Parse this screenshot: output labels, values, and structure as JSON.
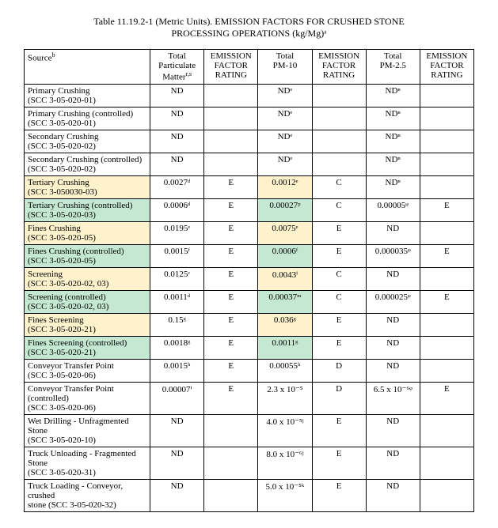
{
  "title": "Table 11.19.2-1 (Metric Units). EMISSION FACTORS FOR CRUSHED STONE\nPROCESSING OPERATIONS (kg/Mg)ᵃ",
  "columns": [
    {
      "label": "Source",
      "sup": "b"
    },
    {
      "label": "Total\nParticulate\nMatter",
      "sup": "r,s"
    },
    {
      "label": "EMISSION\nFACTOR\nRATING",
      "sup": ""
    },
    {
      "label": "Total\nPM-10",
      "sup": ""
    },
    {
      "label": "EMISSION\nFACTOR\nRATING",
      "sup": ""
    },
    {
      "label": "Total\nPM-2.5",
      "sup": ""
    },
    {
      "label": "EMISSION\nFACTOR\nRATING",
      "sup": ""
    }
  ],
  "rows": [
    {
      "src": "Primary Crushing\n(SCC 3-05-020-01)",
      "v": [
        "ND",
        "",
        "NDᵉ",
        "",
        "NDⁿ",
        ""
      ],
      "hl": [
        "",
        "",
        "",
        "",
        "",
        ""
      ]
    },
    {
      "src": "Primary Crushing (controlled)\n(SCC 3-05-020-01)",
      "v": [
        "ND",
        "",
        "NDᵉ",
        "",
        "NDⁿ",
        ""
      ],
      "hl": [
        "",
        "",
        "",
        "",
        "",
        ""
      ]
    },
    {
      "src": "Secondary Crushing\n(SCC 3-05-020-02)",
      "v": [
        "ND",
        "",
        "NDᵉ",
        "",
        "NDⁿ",
        ""
      ],
      "hl": [
        "",
        "",
        "",
        "",
        "",
        ""
      ]
    },
    {
      "src": "Secondary Crushing (controlled)\n(SCC 3-05-020-02)",
      "v": [
        "ND",
        "",
        "NDᵉ",
        "",
        "NDⁿ",
        ""
      ],
      "hl": [
        "",
        "",
        "",
        "",
        "",
        ""
      ]
    },
    {
      "src": "Tertiary Crushing\n(SCC 3-050030-03)",
      "v": [
        "0.0027ᵈ",
        "E",
        "0.0012ᵉ",
        "C",
        "NDⁿ",
        ""
      ],
      "hl": [
        "y",
        "",
        "",
        "y",
        "",
        "",
        ""
      ]
    },
    {
      "src": "Tertiary Crushing (controlled)\n(SCC 3-05-020-03)",
      "v": [
        "0.0006ᵈ",
        "E",
        "0.00027ᵖ",
        "C",
        "0.00005ᵠ",
        "E"
      ],
      "hl": [
        "g",
        "",
        "",
        "g",
        "",
        "",
        ""
      ]
    },
    {
      "src": "Fines Crushing\n(SCC 3-05-020-05)",
      "v": [
        "0.0195ᵉ",
        "E",
        "0.0075ᵉ",
        "E",
        "ND",
        ""
      ],
      "hl": [
        "y",
        "",
        "",
        "y",
        "",
        "",
        ""
      ]
    },
    {
      "src": "Fines Crushing (controlled)\n(SCC 3-05-020-05)",
      "v": [
        "0.0015ᶠ",
        "E",
        "0.0006ᶠ",
        "E",
        "0.000035ᵠ",
        "E"
      ],
      "hl": [
        "g",
        "",
        "",
        "g",
        "",
        "",
        ""
      ]
    },
    {
      "src": "Screening\n(SCC 3-05-020-02, 03)",
      "v": [
        "0.0125ᶜ",
        "E",
        "0.0043ⁱ",
        "C",
        "ND",
        ""
      ],
      "hl": [
        "y",
        "",
        "",
        "y",
        "",
        "",
        ""
      ]
    },
    {
      "src": "Screening (controlled)\n(SCC 3-05-020-02, 03)",
      "v": [
        "0.0011ᵈ",
        "E",
        "0.00037ᵐ",
        "C",
        "0.000025ᵠ",
        "E"
      ],
      "hl": [
        "g",
        "",
        "",
        "g",
        "",
        "",
        ""
      ]
    },
    {
      "src": "Fines Screening\n(SCC 3-05-020-21)",
      "v": [
        "0.15ᵍ",
        "E",
        "0.036ᵍ",
        "E",
        "ND",
        ""
      ],
      "hl": [
        "y",
        "",
        "",
        "y",
        "",
        "",
        ""
      ]
    },
    {
      "src": "Fines Screening (controlled)\n(SCC 3-05-020-21)",
      "v": [
        "0.0018ᵍ",
        "E",
        "0.0011ᵍ",
        "E",
        "ND",
        ""
      ],
      "hl": [
        "g",
        "",
        "",
        "g",
        "",
        "",
        ""
      ]
    },
    {
      "src": "Conveyor Transfer Point\n(SCC 3-05-020-06)",
      "v": [
        "0.0015ʰ",
        "E",
        "0.00055ʰ",
        "D",
        "ND",
        ""
      ],
      "hl": [
        "",
        "",
        "",
        "",
        "",
        ""
      ]
    },
    {
      "src": "Conveyor Transfer Point (controlled)\n(SCC 3-05-020-06)",
      "v": [
        "0.00007ⁱ",
        "E",
        "2.3 x 10⁻⁵",
        "D",
        "6.5 x 10⁻⁶ᵠ",
        "E"
      ],
      "hl": [
        "",
        "",
        "",
        "",
        "",
        ""
      ]
    },
    {
      "src": "Wet Drilling - Unfragmented Stone\n(SCC 3-05-020-10)",
      "v": [
        "ND",
        "",
        "4.0 x 10⁻⁵ʲ",
        "E",
        "ND",
        ""
      ],
      "hl": [
        "",
        "",
        "",
        "",
        "",
        ""
      ]
    },
    {
      "src": "Truck Unloading - Fragmented Stone\n(SCC 3-05-020-31)",
      "v": [
        "ND",
        "",
        "8.0 x 10⁻⁶ʲ",
        "E",
        "ND",
        ""
      ],
      "hl": [
        "",
        "",
        "",
        "",
        "",
        ""
      ]
    },
    {
      "src": "Truck Loading - Conveyor, crushed\nstone (SCC 3-05-020-32)",
      "v": [
        "ND",
        "",
        "5.0 x 10⁻⁵ᵏ",
        "E",
        "ND",
        ""
      ],
      "hl": [
        "",
        "",
        "",
        "",
        "",
        ""
      ]
    }
  ]
}
